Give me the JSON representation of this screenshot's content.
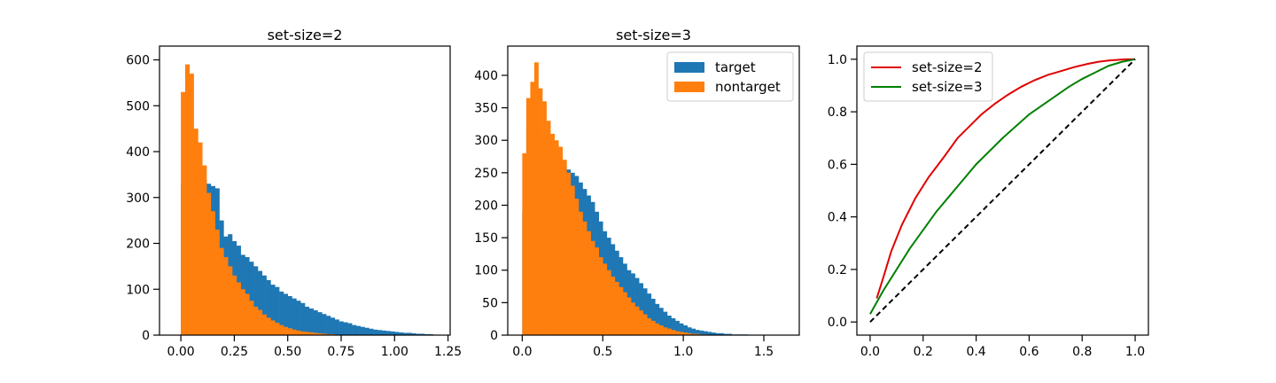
{
  "colors": {
    "target": "#1f77b4",
    "nontarget": "#ff7f0e",
    "roc2": "#e00000",
    "roc3": "#008000",
    "chance": "#000000"
  },
  "chart_data": [
    {
      "type": "bar",
      "title": "set-size=2",
      "xlim": [
        -0.1,
        1.26
      ],
      "ylim": [
        0,
        630
      ],
      "xticks": [
        0.0,
        0.25,
        0.5,
        0.75,
        1.0,
        1.25
      ],
      "xtick_labels": [
        "0.00",
        "0.25",
        "0.50",
        "0.75",
        "1.00",
        "1.25"
      ],
      "yticks": [
        0,
        100,
        200,
        300,
        400,
        500,
        600
      ],
      "ytick_labels": [
        "0",
        "100",
        "200",
        "300",
        "400",
        "500",
        "600"
      ],
      "bin_width": 0.02,
      "series": [
        {
          "key": "target",
          "x_start": 0.0,
          "values": [
            330,
            470,
            420,
            360,
            330,
            340,
            330,
            325,
            320,
            250,
            215,
            220,
            205,
            195,
            175,
            170,
            160,
            150,
            140,
            130,
            120,
            110,
            105,
            95,
            90,
            85,
            80,
            75,
            70,
            62,
            58,
            54,
            50,
            46,
            42,
            38,
            34,
            30,
            28,
            26,
            22,
            20,
            18,
            16,
            14,
            12,
            11,
            10,
            9,
            8,
            7,
            6,
            5,
            5,
            4,
            3,
            3,
            2,
            2,
            1
          ]
        },
        {
          "key": "nontarget",
          "x_start": 0.0,
          "values": [
            530,
            590,
            570,
            450,
            420,
            370,
            310,
            270,
            230,
            190,
            170,
            150,
            130,
            115,
            100,
            90,
            75,
            62,
            55,
            45,
            38,
            32,
            27,
            22,
            18,
            15,
            12,
            10,
            8,
            7,
            6,
            5,
            4,
            3,
            2,
            2,
            1,
            1,
            0,
            0
          ]
        }
      ]
    },
    {
      "type": "bar",
      "title": "set-size=3",
      "xlim": [
        -0.09,
        1.72
      ],
      "ylim": [
        0,
        445
      ],
      "xticks": [
        0.0,
        0.5,
        1.0,
        1.5
      ],
      "xtick_labels": [
        "0.0",
        "0.5",
        "1.0",
        "1.5"
      ],
      "yticks": [
        0,
        50,
        100,
        150,
        200,
        250,
        300,
        350,
        400
      ],
      "ytick_labels": [
        "0",
        "50",
        "100",
        "150",
        "200",
        "250",
        "300",
        "350",
        "400"
      ],
      "bin_width": 0.025,
      "legend": {
        "placement": "upper right",
        "entries": [
          "target",
          "nontarget"
        ]
      },
      "series": [
        {
          "key": "target",
          "x_start": 0.0,
          "values": [
            190,
            320,
            330,
            320,
            310,
            300,
            290,
            280,
            270,
            265,
            260,
            255,
            250,
            245,
            235,
            225,
            215,
            205,
            190,
            175,
            160,
            150,
            140,
            130,
            120,
            110,
            100,
            95,
            88,
            80,
            72,
            64,
            56,
            48,
            42,
            36,
            30,
            26,
            22,
            18,
            15,
            12,
            10,
            8,
            7,
            6,
            5,
            4,
            3,
            3,
            2,
            2,
            1,
            1,
            1,
            1,
            0,
            0,
            0,
            0,
            0,
            0,
            0,
            0
          ]
        },
        {
          "key": "nontarget",
          "x_start": 0.0,
          "values": [
            280,
            365,
            390,
            420,
            380,
            360,
            330,
            310,
            300,
            290,
            270,
            250,
            230,
            210,
            190,
            175,
            160,
            145,
            135,
            120,
            110,
            100,
            90,
            82,
            74,
            66,
            58,
            50,
            44,
            38,
            32,
            26,
            22,
            18,
            15,
            12,
            10,
            8,
            6,
            5,
            4,
            3,
            2,
            2,
            1,
            1,
            0,
            0
          ]
        }
      ]
    },
    {
      "type": "line",
      "title": "",
      "xlim": [
        -0.05,
        1.05
      ],
      "ylim": [
        -0.05,
        1.05
      ],
      "xticks": [
        0.0,
        0.2,
        0.4,
        0.6,
        0.8,
        1.0
      ],
      "xtick_labels": [
        "0.0",
        "0.2",
        "0.4",
        "0.6",
        "0.8",
        "1.0"
      ],
      "yticks": [
        0.0,
        0.2,
        0.4,
        0.6,
        0.8,
        1.0
      ],
      "ytick_labels": [
        "0.0",
        "0.2",
        "0.4",
        "0.6",
        "0.8",
        "1.0"
      ],
      "legend": {
        "placement": "upper left",
        "entries": [
          "set-size=2",
          "set-size=3"
        ]
      },
      "series": [
        {
          "key": "roc2",
          "name": "set-size=2",
          "x": [
            0.025,
            0.05,
            0.08,
            0.12,
            0.17,
            0.22,
            0.28,
            0.33,
            0.38,
            0.42,
            0.47,
            0.52,
            0.57,
            0.62,
            0.67,
            0.72,
            0.77,
            0.82,
            0.86,
            0.9,
            0.94,
            0.97,
            1.0
          ],
          "y": [
            0.09,
            0.17,
            0.27,
            0.37,
            0.47,
            0.55,
            0.63,
            0.7,
            0.75,
            0.79,
            0.83,
            0.865,
            0.895,
            0.92,
            0.94,
            0.955,
            0.97,
            0.982,
            0.99,
            0.995,
            0.998,
            1.0,
            1.0
          ]
        },
        {
          "key": "roc3",
          "name": "set-size=3",
          "x": [
            0.0,
            0.05,
            0.1,
            0.15,
            0.2,
            0.25,
            0.3,
            0.35,
            0.4,
            0.45,
            0.5,
            0.55,
            0.6,
            0.65,
            0.7,
            0.75,
            0.8,
            0.85,
            0.9,
            0.95,
            1.0
          ],
          "y": [
            0.03,
            0.12,
            0.2,
            0.28,
            0.35,
            0.42,
            0.48,
            0.54,
            0.6,
            0.65,
            0.7,
            0.745,
            0.79,
            0.825,
            0.86,
            0.895,
            0.925,
            0.95,
            0.975,
            0.99,
            1.0
          ]
        },
        {
          "key": "chance",
          "name": "",
          "dashed": true,
          "x": [
            0.0,
            1.0
          ],
          "y": [
            0.0,
            1.0
          ]
        }
      ]
    }
  ]
}
